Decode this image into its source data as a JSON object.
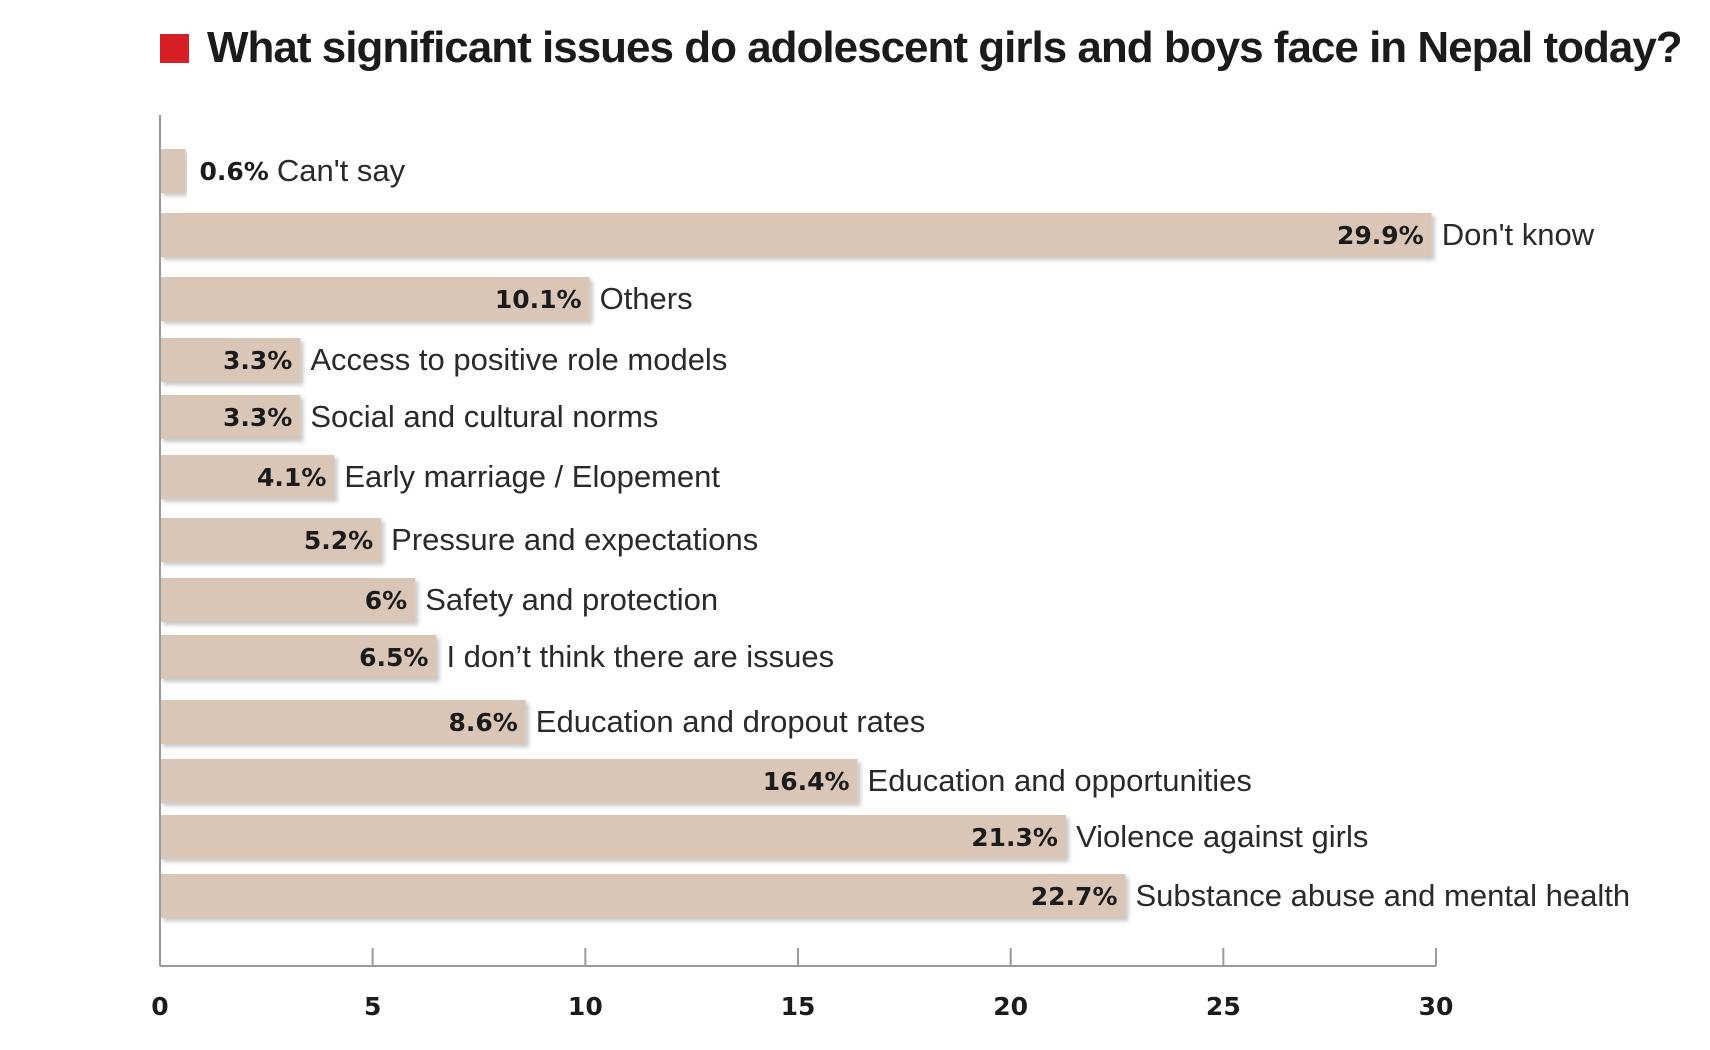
{
  "chart_data": {
    "type": "bar",
    "orientation": "horizontal",
    "title": "What significant issues do adolescent girls and boys face in Nepal today?",
    "categories": [
      "Can't say",
      "Don't know",
      "Others",
      "Access to positive role models",
      "Social and cultural norms",
      "Early marriage / Elopement",
      "Pressure and expectations",
      "Safety and protection",
      "I don’t think there are issues",
      "Education and dropout rates",
      "Education and opportunities",
      "Violence against girls",
      "Substance abuse and mental health"
    ],
    "values": [
      0.6,
      29.9,
      10.1,
      3.3,
      3.3,
      4.1,
      5.2,
      6,
      6.5,
      8.6,
      16.4,
      21.3,
      22.7
    ],
    "value_labels": [
      "0.6%",
      "29.9%",
      "10.1%",
      "3.3%",
      "3.3%",
      "4.1%",
      "5.2%",
      "6%",
      "6.5%",
      "8.6%",
      "16.4%",
      "21.3%",
      "22.7%"
    ],
    "xlim": [
      0,
      30
    ],
    "xticks": [
      0,
      5,
      10,
      15,
      20,
      25,
      30
    ],
    "grid": false,
    "legend": "none",
    "colors": {
      "bar": "#d9c6b6",
      "accent": "#d71f26",
      "axis": "#999999",
      "text": "#1b1b1b"
    }
  }
}
